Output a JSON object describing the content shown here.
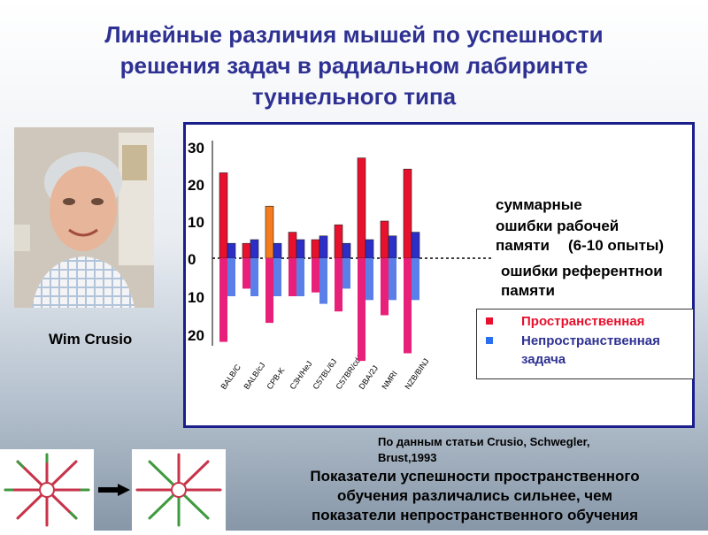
{
  "slide": {
    "title_lines": [
      "Линейные различия мышей по успешности",
      "решения задач в радиальном лабиринте",
      "туннельного типа"
    ],
    "photo_caption": "Wim Crusio",
    "annotations": {
      "line1": "суммарные",
      "line2": "ошибки рабочей",
      "line3": "памяти",
      "line3b": "(6-10 опыты)",
      "line4": "ошибки референтнои",
      "line5": "памяти"
    },
    "legend": {
      "spatial": "Пространственная",
      "nonspatial_1": "Непространственная",
      "nonspatial_2": "задача"
    },
    "source_lines": [
      "По данным статьи Crusio, Schwegler,",
      "Brust,1993"
    ],
    "conclusion_lines": [
      "Показатели успешности пространственного",
      "обучения   различались сильнее, чем",
      "показатели непространственного обучения"
    ],
    "colors": {
      "title": "#2e3192",
      "spatial": "#e8112d",
      "spatial_orange": "#f47c1f",
      "spatial_lower": "#e8207a",
      "nonspatial": "#2b2fc8",
      "nonspatial_lower": "#5a7fe8",
      "legend_spatial_text": "#e8112d",
      "legend_nonspatial_text": "#2e3192"
    }
  },
  "chart_data": {
    "type": "bar",
    "categories": [
      "BALB/C",
      "BALB/cJ",
      "CPB-K",
      "C3H/HeJ",
      "C57BL/6J",
      "C57BR/cdJ",
      "DBA/2J",
      "NMRI",
      "NZB/BINJ"
    ],
    "y_tick_labels_upper": [
      "30",
      "20",
      "10",
      "0"
    ],
    "y_tick_labels_lower": [
      "10",
      "20"
    ],
    "series": [
      {
        "name": "Пространственная",
        "panel": "суммарные ошибки рабочей памяти",
        "values": [
          23,
          4,
          14,
          7,
          5,
          9,
          27,
          10,
          24
        ]
      },
      {
        "name": "Непространственная задача",
        "panel": "суммарные ошибки рабочей памяти",
        "values": [
          4,
          5,
          4,
          5,
          6,
          4,
          5,
          6,
          7
        ]
      },
      {
        "name": "Пространственная",
        "panel": "ошибки референтнои памяти",
        "values": [
          22,
          8,
          17,
          10,
          9,
          14,
          27,
          15,
          25
        ]
      },
      {
        "name": "Непространственная задача",
        "panel": "ошибки референтнои памяти",
        "values": [
          10,
          10,
          10,
          10,
          12,
          8,
          11,
          11,
          11
        ]
      }
    ],
    "highlight": {
      "category_index": 2,
      "color": "#f47c1f"
    },
    "ylim_upper": [
      0,
      30
    ],
    "ylim_lower": [
      0,
      25
    ],
    "grid": false
  }
}
